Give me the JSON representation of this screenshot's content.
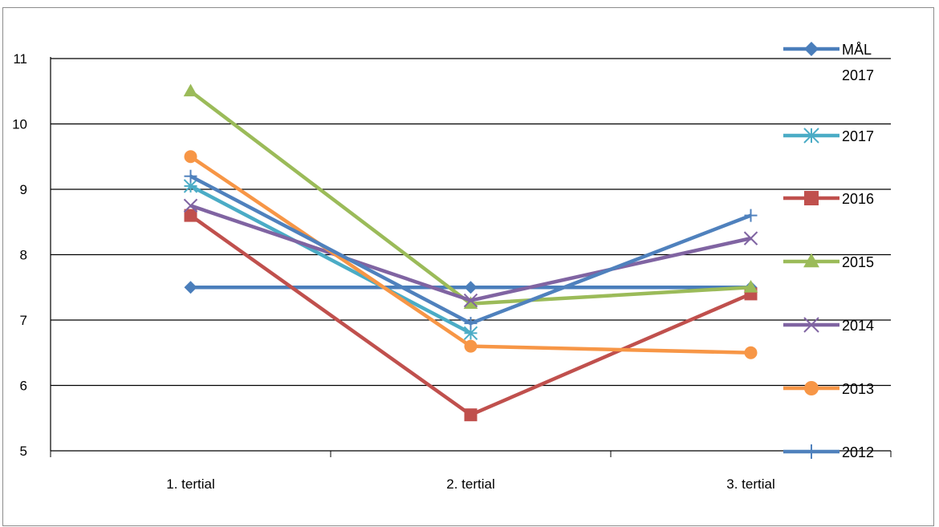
{
  "chart_data": {
    "type": "line",
    "title": "",
    "xlabel": "",
    "ylabel": "",
    "categories": [
      "1. tertial",
      "2. tertial",
      "3. tertial"
    ],
    "ylim": [
      5,
      11
    ],
    "yticks": [
      5,
      6,
      7,
      8,
      9,
      10,
      11
    ],
    "grid": "horizontal",
    "legend_position": "right",
    "series": [
      {
        "name": "MÅL 2017",
        "legend_lines": [
          "MÅL",
          "2017"
        ],
        "values": [
          7.5,
          7.5,
          7.5
        ],
        "color": "#4a7ebb",
        "marker": "diamond"
      },
      {
        "name": "2017",
        "legend_lines": [
          "2017"
        ],
        "values": [
          9.05,
          6.8,
          null
        ],
        "color": "#4bacc6",
        "marker": "asterisk"
      },
      {
        "name": "2016",
        "legend_lines": [
          "2016"
        ],
        "values": [
          8.6,
          5.55,
          7.4
        ],
        "color": "#c0504d",
        "marker": "square"
      },
      {
        "name": "2015",
        "legend_lines": [
          "2015"
        ],
        "values": [
          10.5,
          7.25,
          7.5
        ],
        "color": "#9bbb59",
        "marker": "triangle"
      },
      {
        "name": "2014",
        "legend_lines": [
          "2014"
        ],
        "values": [
          8.75,
          7.3,
          8.25
        ],
        "color": "#8064a2",
        "marker": "x"
      },
      {
        "name": "2013",
        "legend_lines": [
          "2013"
        ],
        "values": [
          9.5,
          6.6,
          6.5
        ],
        "color": "#f79646",
        "marker": "circle"
      },
      {
        "name": "2012",
        "legend_lines": [
          "2012"
        ],
        "values": [
          9.2,
          6.95,
          8.6
        ],
        "color": "#4f81bd",
        "marker": "plus"
      }
    ]
  }
}
